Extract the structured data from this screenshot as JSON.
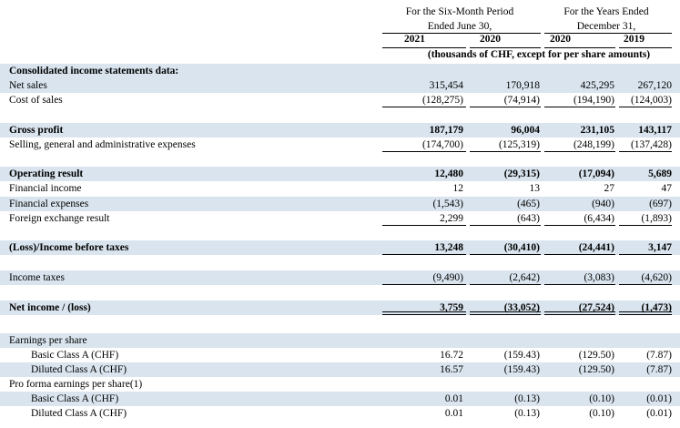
{
  "header": {
    "six_month_line1": "For the Six-Month Period",
    "six_month_line2": "Ended June 30,",
    "years_line1": "For the Years Ended",
    "years_line2": "December 31,",
    "years": [
      "2021",
      "2020",
      "2020",
      "2019"
    ],
    "units": "(thousands of CHF, except for per share amounts)"
  },
  "table": {
    "section_title": "Consolidated income statements data:",
    "rows": [
      {
        "label": "Net sales",
        "values": [
          "315,454",
          "170,918",
          "425,295",
          "267,120"
        ]
      },
      {
        "label": "Cost of sales",
        "values": [
          "(128,275)",
          "(74,914)",
          "(194,190)",
          "(124,003)"
        ]
      },
      {
        "label": "Gross profit",
        "values": [
          "187,179",
          "96,004",
          "231,105",
          "143,117"
        ]
      },
      {
        "label": "Selling, general and administrative expenses",
        "values": [
          "(174,700)",
          "(125,319)",
          "(248,199)",
          "(137,428)"
        ]
      },
      {
        "label": "Operating result",
        "values": [
          "12,480",
          "(29,315)",
          "(17,094)",
          "5,689"
        ]
      },
      {
        "label": "Financial income",
        "values": [
          "12",
          "13",
          "27",
          "47"
        ]
      },
      {
        "label": "Financial expenses",
        "values": [
          "(1,543)",
          "(465)",
          "(940)",
          "(697)"
        ]
      },
      {
        "label": "Foreign exchange result",
        "values": [
          "2,299",
          "(643)",
          "(6,434)",
          "(1,893)"
        ]
      },
      {
        "label": "(Loss)/Income before taxes",
        "values": [
          "13,248",
          "(30,410)",
          "(24,441)",
          "3,147"
        ]
      },
      {
        "label": "Income taxes",
        "values": [
          "(9,490)",
          "(2,642)",
          "(3,083)",
          "(4,620)"
        ]
      },
      {
        "label": "Net income / (loss)",
        "values": [
          "3,759",
          "(33,052)",
          "(27,524)",
          "(1,473)"
        ]
      },
      {
        "label": "Earnings per share",
        "values": [
          "",
          "",
          "",
          ""
        ]
      },
      {
        "label": "Basic Class A (CHF)",
        "values": [
          "16.72",
          "(159.43)",
          "(129.50)",
          "(7.87)"
        ]
      },
      {
        "label": "Diluted Class A (CHF)",
        "values": [
          "16.57",
          "(159.43)",
          "(129.50)",
          "(7.87)"
        ]
      },
      {
        "label": "Pro forma earnings per share(1)",
        "values": [
          "",
          "",
          "",
          ""
        ]
      },
      {
        "label": "Basic Class A (CHF)",
        "values": [
          "0.01",
          "(0.13)",
          "(0.10)",
          "(0.01)"
        ]
      },
      {
        "label": "Diluted Class A (CHF)",
        "values": [
          "0.01",
          "(0.13)",
          "(0.10)",
          "(0.01)"
        ]
      }
    ]
  }
}
